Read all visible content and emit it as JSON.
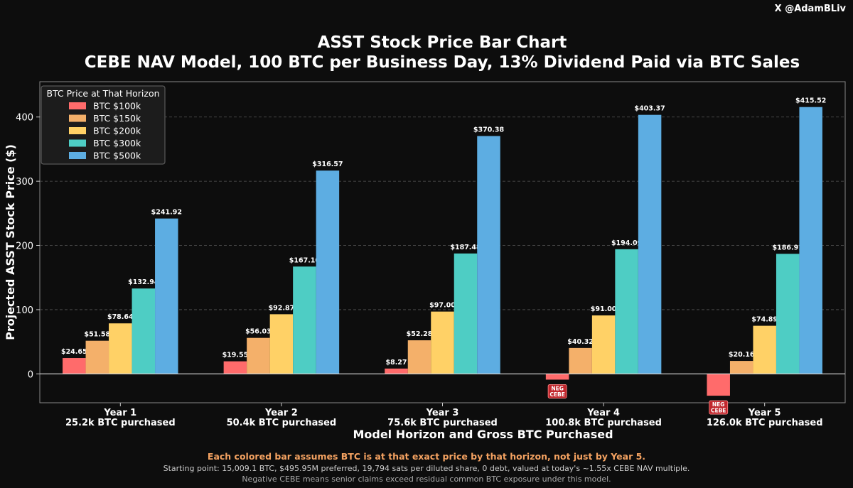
{
  "handle": "X @AdamBLiv",
  "title_line1": "ASST Stock Price Bar Chart",
  "title_line2": "CEBE NAV Model, 100 BTC per Business Day, 13% Dividend Paid via BTC Sales",
  "footer": {
    "line1": "Each colored bar assumes BTC is at that exact price by that horizon, not just by Year 5.",
    "line2": "Starting point: 15,009.1 BTC, $495.95M preferred, 19,794 sats per diluted share, 0 debt, valued at today's ~1.55x CEBE NAV multiple.",
    "line3": "Negative CEBE means senior claims exceed residual common BTC exposure under this model."
  },
  "colors": {
    "background": "#0d0d0d",
    "plot_background": "#0d0d0d",
    "neg_badge": "#c1272d"
  },
  "chart_data": {
    "type": "bar",
    "xlabel": "Model Horizon and Gross BTC Purchased",
    "ylabel": "Projected ASST Stock Price ($)",
    "ylim": [
      -45,
      455
    ],
    "yticks": [
      0,
      100,
      200,
      300,
      400
    ],
    "grid": true,
    "legend": {
      "title": "BTC Price at That Horizon",
      "placement": "top-left"
    },
    "categories": [
      {
        "line1": "Year 1",
        "line2": "25.2k BTC purchased"
      },
      {
        "line1": "Year 2",
        "line2": "50.4k BTC purchased"
      },
      {
        "line1": "Year 3",
        "line2": "75.6k BTC purchased"
      },
      {
        "line1": "Year 4",
        "line2": "100.8k BTC purchased"
      },
      {
        "line1": "Year 5",
        "line2": "126.0k BTC purchased"
      }
    ],
    "series": [
      {
        "name": "BTC $100k",
        "color": "#ff6b6b",
        "values": [
          24.65,
          19.55,
          8.27,
          -9,
          -34
        ],
        "labels": [
          "$24.65",
          "$19.55",
          "$8.27",
          "NEG\nCEBE",
          "NEG\nCEBE"
        ]
      },
      {
        "name": "BTC $150k",
        "color": "#f4b06a",
        "values": [
          51.58,
          56.03,
          52.28,
          40.32,
          20.16
        ],
        "labels": [
          "$51.58",
          "$56.03",
          "$52.28",
          "$40.32",
          "$20.16"
        ]
      },
      {
        "name": "BTC $200k",
        "color": "#ffd166",
        "values": [
          78.64,
          92.87,
          97.0,
          91.0,
          74.89
        ],
        "labels": [
          "$78.64",
          "$92.87",
          "$97.00",
          "$91.00",
          "$74.89"
        ]
      },
      {
        "name": "BTC $300k",
        "color": "#4ecdc4",
        "values": [
          132.94,
          167.1,
          187.48,
          194.09,
          186.91
        ],
        "labels": [
          "$132.94",
          "$167.10",
          "$187.48",
          "$194.09",
          "$186.91"
        ]
      },
      {
        "name": "BTC $500k",
        "color": "#5dade2",
        "values": [
          241.92,
          316.57,
          370.38,
          403.37,
          415.52
        ],
        "labels": [
          "$241.92",
          "$316.57",
          "$370.38",
          "$403.37",
          "$415.52"
        ]
      }
    ]
  }
}
